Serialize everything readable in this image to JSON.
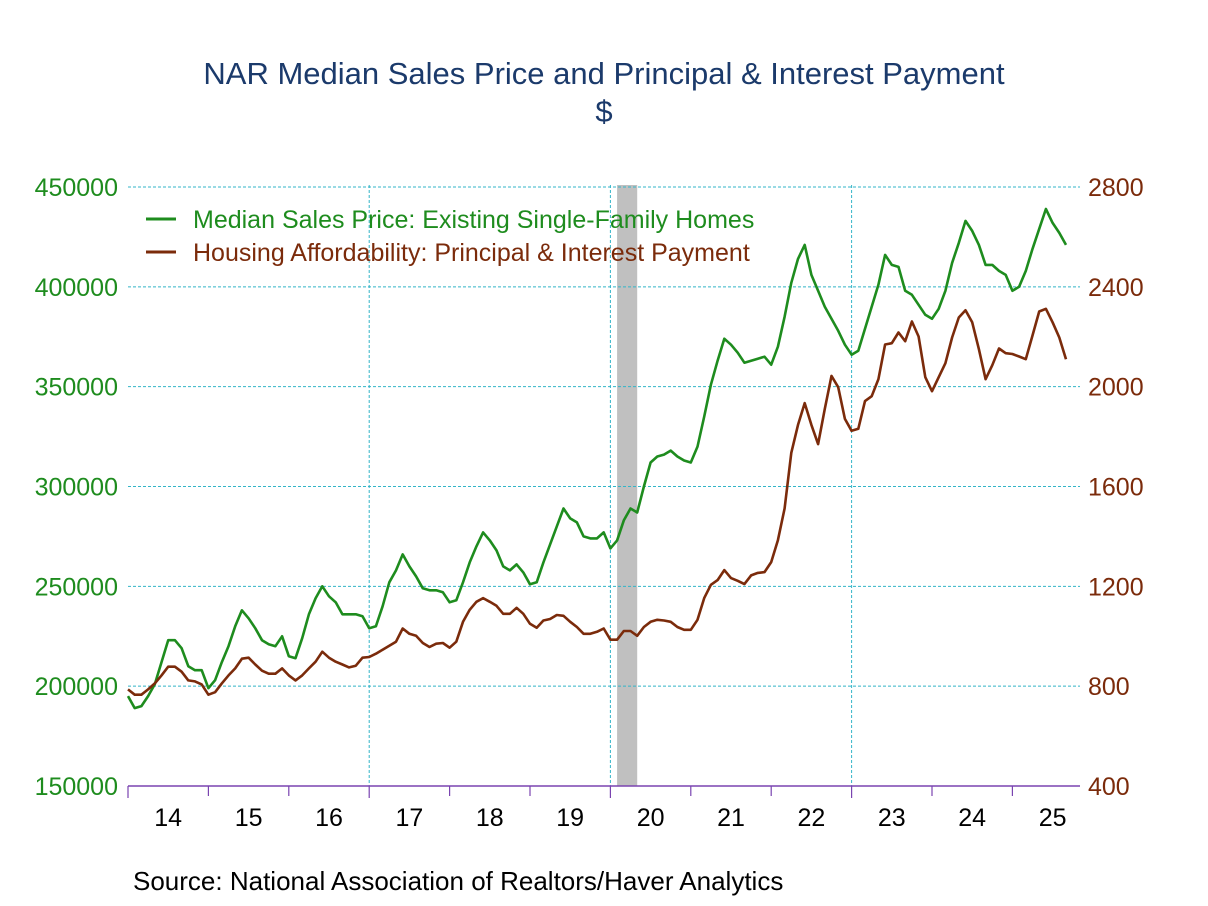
{
  "chart_data": {
    "type": "line",
    "title": "NAR Median Sales Price and Principal & Interest Payment",
    "subtitle": "$",
    "source": "Source:  National Association of Realtors/Haver Analytics",
    "x_tick_labels": [
      "14",
      "15",
      "16",
      "17",
      "18",
      "19",
      "20",
      "21",
      "22",
      "23",
      "24",
      "25"
    ],
    "x_range": [
      "2014-01",
      "2025-11"
    ],
    "left_axis": {
      "range": [
        150000,
        450000
      ],
      "ticks": [
        "150000",
        "200000",
        "250000",
        "300000",
        "350000",
        "400000",
        "450000"
      ],
      "color": "#1e8c1e"
    },
    "right_axis": {
      "range": [
        400,
        2800
      ],
      "ticks": [
        "400",
        "800",
        "1200",
        "1600",
        "2000",
        "2400",
        "2800"
      ],
      "color": "#7b2b0b"
    },
    "grid": true,
    "legend_position": "top-left",
    "recession_shading": {
      "start": "2020-02",
      "end": "2020-04",
      "color": "#c0c0c0"
    },
    "series": [
      {
        "name": "Median Sales Price: Existing Single-Family Homes",
        "axis": "left",
        "color": "#1e8c1e",
        "by_year": [
          {
            "year": 2014,
            "monthly": [
              195000,
              189000,
              190000,
              195000,
              201000,
              212000,
              223000,
              223000,
              219000,
              210000,
              208000,
              208000
            ]
          },
          {
            "year": 2015,
            "monthly": [
              199000,
              203000,
              212000,
              220000,
              230000,
              238000,
              234000,
              229000,
              223000,
              221000,
              220000,
              225000
            ]
          },
          {
            "year": 2016,
            "monthly": [
              215000,
              214000,
              224000,
              236000,
              244000,
              250000,
              245000,
              242000,
              236000,
              236000,
              236000,
              235000
            ]
          },
          {
            "year": 2017,
            "monthly": [
              229000,
              230000,
              240000,
              252000,
              258000,
              266000,
              260000,
              255000,
              249000,
              248000,
              248000,
              247000
            ]
          },
          {
            "year": 2018,
            "monthly": [
              242000,
              243000,
              252000,
              262000,
              270000,
              277000,
              273000,
              268000,
              260000,
              258000,
              261000,
              257000
            ]
          },
          {
            "year": 2019,
            "monthly": [
              251000,
              252000,
              262000,
              271000,
              280000,
              289000,
              284000,
              282000,
              275000,
              274000,
              274000,
              277000
            ]
          },
          {
            "year": 2020,
            "monthly": [
              269000,
              273000,
              283000,
              289000,
              287000,
              300000,
              312000,
              315000,
              316000,
              318000,
              315000,
              313000
            ]
          },
          {
            "year": 2021,
            "monthly": [
              312000,
              320000,
              335000,
              351000,
              363000,
              374000,
              371000,
              367000,
              362000,
              363000,
              364000,
              365000
            ]
          },
          {
            "year": 2022,
            "monthly": [
              361000,
              370000,
              385000,
              402000,
              414000,
              421000,
              406000,
              398000,
              390000,
              384000,
              378000,
              371000
            ]
          },
          {
            "year": 2023,
            "monthly": [
              366000,
              368000,
              379000,
              390000,
              401000,
              416000,
              411000,
              410000,
              398000,
              396000,
              391000,
              386000
            ]
          },
          {
            "year": 2024,
            "monthly": [
              384000,
              389000,
              398000,
              412000,
              422000,
              433000,
              428000,
              421000,
              411000,
              411000,
              408000,
              406000
            ]
          },
          {
            "year": 2025,
            "monthly": [
              398000,
              400000,
              408000,
              419000,
              429000,
              439000,
              432000,
              427000,
              421000
            ]
          }
        ]
      },
      {
        "name": "Housing Affordability: Principal & Interest Payment",
        "axis": "right",
        "color": "#7b2b0b",
        "by_year": [
          {
            "year": 2014,
            "monthly": [
              787,
              766,
              766,
              787,
              811,
              843,
              878,
              878,
              858,
              823,
              819,
              807
            ]
          },
          {
            "year": 2015,
            "monthly": [
              766,
              776,
              811,
              843,
              871,
              910,
              914,
              887,
              862,
              850,
              850,
              871
            ]
          },
          {
            "year": 2016,
            "monthly": [
              843,
              823,
              843,
              871,
              898,
              938,
              914,
              898,
              887,
              875,
              882,
              914
            ]
          },
          {
            "year": 2017,
            "monthly": [
              917,
              930,
              946,
              962,
              978,
              1031,
              1010,
              1002,
              973,
              957,
              970,
              973
            ]
          },
          {
            "year": 2018,
            "monthly": [
              954,
              978,
              1058,
              1106,
              1138,
              1153,
              1138,
              1122,
              1090,
              1090,
              1114,
              1090
            ]
          },
          {
            "year": 2019,
            "monthly": [
              1050,
              1034,
              1063,
              1069,
              1085,
              1082,
              1058,
              1037,
              1010,
              1010,
              1018,
              1031
            ]
          },
          {
            "year": 2020,
            "monthly": [
              986,
              986,
              1021,
              1021,
              1002,
              1037,
              1058,
              1066,
              1063,
              1058,
              1037,
              1026
            ]
          },
          {
            "year": 2021,
            "monthly": [
              1026,
              1066,
              1153,
              1206,
              1225,
              1265,
              1233,
              1222,
              1209,
              1244,
              1254,
              1257
            ]
          },
          {
            "year": 2022,
            "monthly": [
              1297,
              1385,
              1512,
              1735,
              1847,
              1934,
              1847,
              1770,
              1911,
              2043,
              1998,
              1871
            ]
          },
          {
            "year": 2023,
            "monthly": [
              1823,
              1831,
              1942,
              1962,
              2030,
              2169,
              2174,
              2217,
              2182,
              2261,
              2201,
              2038
            ]
          },
          {
            "year": 2024,
            "monthly": [
              1982,
              2038,
              2094,
              2197,
              2277,
              2306,
              2258,
              2150,
              2030,
              2086,
              2153,
              2134
            ]
          },
          {
            "year": 2025,
            "monthly": [
              2131,
              2121,
              2110,
              2205,
              2301,
              2312,
              2258,
              2197,
              2110
            ]
          }
        ]
      }
    ]
  }
}
